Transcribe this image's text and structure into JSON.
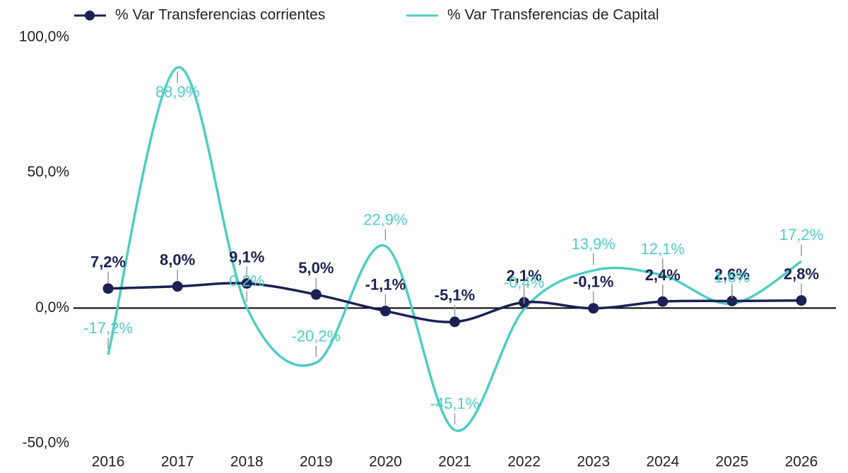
{
  "chart_data": {
    "type": "line",
    "categories": [
      "2016",
      "2017",
      "2018",
      "2019",
      "2020",
      "2021",
      "2022",
      "2023",
      "2024",
      "2025",
      "2026"
    ],
    "series": [
      {
        "name": "% Var Transferencias corrientes",
        "color": "#1c2153",
        "markers": true,
        "values": [
          7.2,
          8.0,
          9.1,
          5.0,
          -1.1,
          -5.1,
          2.1,
          -0.1,
          2.4,
          2.6,
          2.8
        ],
        "value_labels": [
          "7,2%",
          "8,0%",
          "9,1%",
          "5,0%",
          "-1,1%",
          "-5,1%",
          "2,1%",
          "-0,1%",
          "2,4%",
          "2,6%",
          "2,8%"
        ]
      },
      {
        "name": "% Var Transferencias de Capital",
        "color": "#4ecdc4",
        "markers": false,
        "values": [
          -17.2,
          88.9,
          0.2,
          -20.2,
          22.9,
          -45.1,
          -0.4,
          13.9,
          12.1,
          1.6,
          17.2
        ],
        "value_labels": [
          "-17,2%",
          "88,9%",
          "0,2%",
          "-20,2%",
          "22,9%",
          "-45,1%",
          "-0,4%",
          "13,9%",
          "12,1%",
          "1,6%",
          "17,2%"
        ]
      }
    ],
    "ylim": [
      -50,
      100
    ],
    "yticks": [
      {
        "value": -50,
        "label": "-50,0%"
      },
      {
        "value": 0,
        "label": "0,0%"
      },
      {
        "value": 50,
        "label": "50,0%"
      },
      {
        "value": 100,
        "label": "100,0%"
      }
    ],
    "grid": false,
    "legend": "top"
  }
}
